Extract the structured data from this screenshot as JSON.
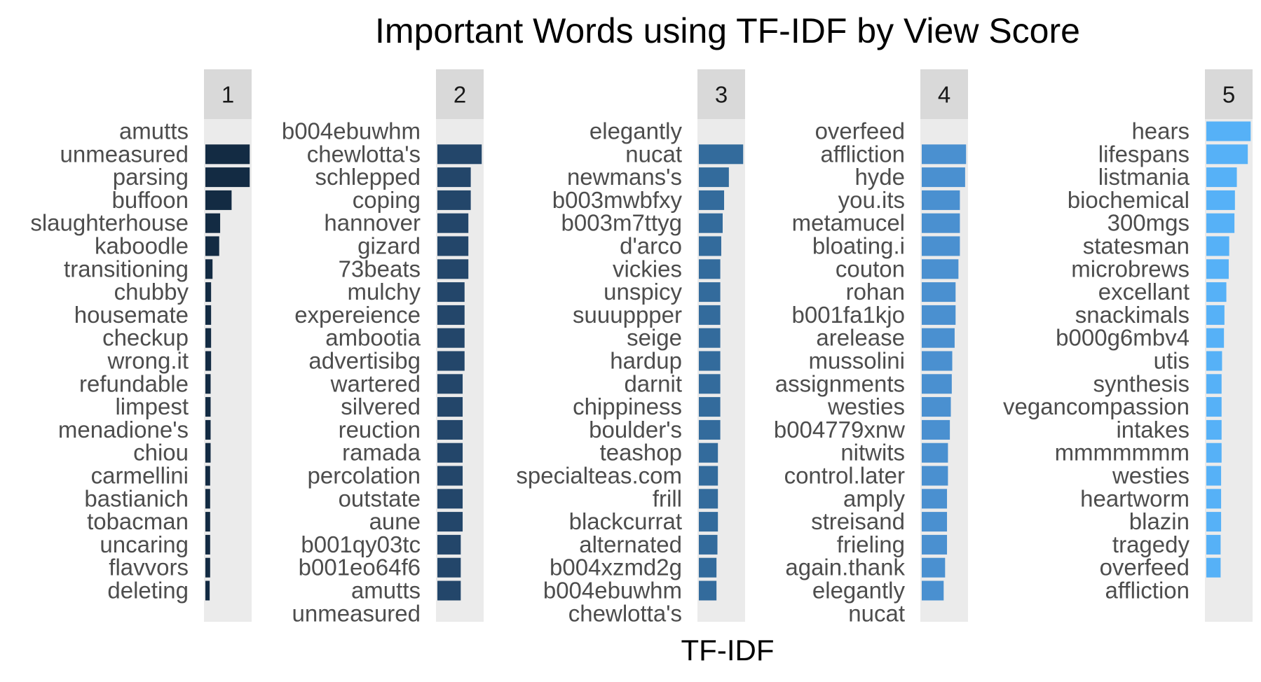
{
  "chart_data": {
    "type": "bar",
    "orientation": "horizontal",
    "title": "Important Words using TF-IDF by View Score",
    "xlabel": "TF-IDF",
    "ylabel": "",
    "grid": false,
    "legend": "none",
    "palette": [
      "#132B43",
      "#23466A",
      "#336B9C",
      "#4A90D0",
      "#56B1F7"
    ],
    "panel_background": "#EBEBEB",
    "strip_background": "#D9D9D9",
    "xlim": [
      0,
      1
    ],
    "panels": [
      {
        "label": "1",
        "words": [
          "amutts",
          "unmeasured",
          "parsing",
          "buffoon",
          "slaughterhouse",
          "kaboodle",
          "transitioning",
          "chubby",
          "housemate",
          "checkup",
          "wrong.it",
          "refundable",
          "limpest",
          "menadione's",
          "chiou",
          "carmellini",
          "bastianich",
          "tobacman",
          "uncaring",
          "flavvors",
          "deleting"
        ],
        "values": [
          null,
          0.93,
          0.93,
          0.55,
          0.31,
          0.29,
          0.15,
          0.12,
          0.12,
          0.12,
          0.12,
          0.11,
          0.11,
          0.11,
          0.11,
          0.1,
          0.1,
          0.1,
          0.1,
          0.1,
          0.09
        ]
      },
      {
        "label": "2",
        "words": [
          "b004ebuwhm",
          "chewlotta's",
          "schlepped",
          "coping",
          "hannover",
          "gizard",
          "73beats",
          "mulchy",
          "expereience",
          "ambootia",
          "advertisibg",
          "wartered",
          "silvered",
          "reuction",
          "ramada",
          "percolation",
          "outstate",
          "aune",
          "b001qy03tc",
          "b001eo64f6",
          "amutts",
          "unmeasured"
        ],
        "values": [
          null,
          0.93,
          0.7,
          0.7,
          0.65,
          0.65,
          0.65,
          0.57,
          0.57,
          0.57,
          0.57,
          0.53,
          0.53,
          0.53,
          0.53,
          0.53,
          0.53,
          0.53,
          0.49,
          0.49,
          0.49,
          null
        ]
      },
      {
        "label": "3",
        "words": [
          "elegantly",
          "nucat",
          "newmans's",
          "b003mwbfxy",
          "b003m7ttyg",
          "d'arco",
          "vickies",
          "unspicy",
          "suuuppper",
          "seige",
          "hardup",
          "darnit",
          "chippiness",
          "boulder's",
          "teashop",
          "specialteas.com",
          "frill",
          "blackcurrat",
          "alternated",
          "b004xzmd2g",
          "b004ebuwhm",
          "chewlotta's"
        ],
        "values": [
          null,
          0.93,
          0.63,
          0.53,
          0.5,
          0.47,
          0.45,
          0.45,
          0.45,
          0.45,
          0.45,
          0.45,
          0.45,
          0.45,
          0.4,
          0.4,
          0.4,
          0.4,
          0.39,
          0.37,
          0.37,
          null
        ]
      },
      {
        "label": "4",
        "words": [
          "overfeed",
          "affliction",
          "hyde",
          "you.its",
          "metamucel",
          "bloating.i",
          "couton",
          "rohan",
          "b001fa1kjo",
          "arelease",
          "mussolini",
          "assignments",
          "westies",
          "b004779xnw",
          "nitwits",
          "control.later",
          "amply",
          "streisand",
          "frieling",
          "again.thank",
          "elegantly",
          "nucat"
        ],
        "values": [
          null,
          0.93,
          0.91,
          0.8,
          0.8,
          0.8,
          0.77,
          0.71,
          0.71,
          0.69,
          0.64,
          0.63,
          0.61,
          0.59,
          0.55,
          0.55,
          0.53,
          0.53,
          0.53,
          0.49,
          0.46,
          null
        ]
      },
      {
        "label": "5",
        "words": [
          "hears",
          "lifespans",
          "listmania",
          "biochemical",
          "300mgs",
          "statesman",
          "microbrews",
          "excellant",
          "snackimals",
          "b000g6mbv4",
          "utis",
          "synthesis",
          "vegancompassion",
          "intakes",
          "mmmmmmm",
          "westies",
          "heartworm",
          "blazin",
          "tragedy",
          "overfeed",
          "affliction"
        ],
        "values": [
          0.93,
          0.87,
          0.64,
          0.6,
          0.59,
          0.48,
          0.47,
          0.42,
          0.38,
          0.37,
          0.33,
          0.32,
          0.32,
          0.32,
          0.32,
          0.31,
          0.31,
          0.31,
          0.3,
          0.3,
          null
        ]
      }
    ]
  }
}
